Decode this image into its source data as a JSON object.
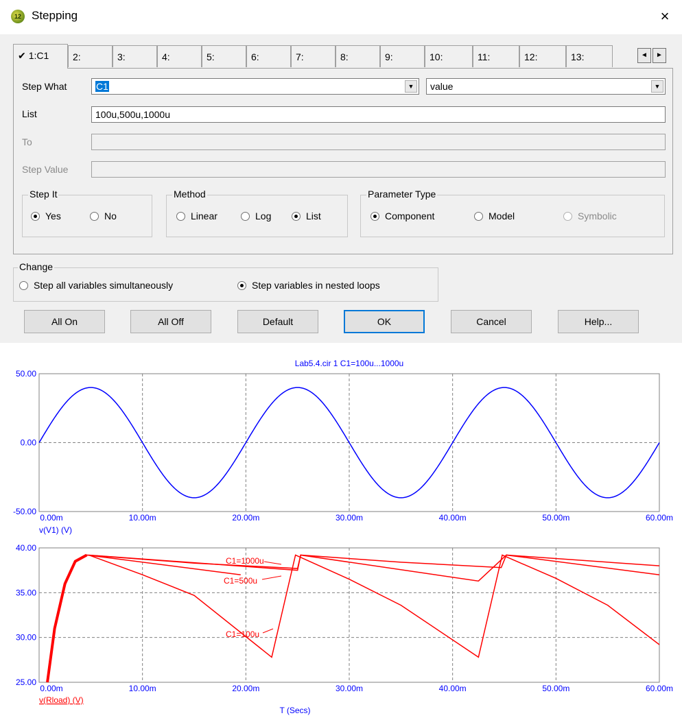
{
  "window": {
    "title": "Stepping",
    "icon_text": "12",
    "close_label": "×"
  },
  "tabs": [
    "1:C1",
    "2:",
    "3:",
    "4:",
    "5:",
    "6:",
    "7:",
    "8:",
    "9:",
    "10:",
    "11:",
    "12:",
    "13:"
  ],
  "active_tab_check": "✔",
  "tab_scroll": {
    "left": "◄",
    "right": "►"
  },
  "form": {
    "step_what_label": "Step What",
    "step_what_value": "C1",
    "step_what_dropdown_arrow": "▼",
    "property_value": "value",
    "list_label": "List",
    "list_value": "100u,500u,1000u",
    "to_label": "To",
    "step_value_label": "Step Value"
  },
  "step_it": {
    "title": "Step It",
    "options": [
      "Yes",
      "No"
    ],
    "selected": "Yes"
  },
  "method": {
    "title": "Method",
    "options": [
      "Linear",
      "Log",
      "List"
    ],
    "selected": "List"
  },
  "parameter_type": {
    "title": "Parameter Type",
    "options": [
      "Component",
      "Model",
      "Symbolic"
    ],
    "selected": "Component"
  },
  "change": {
    "title": "Change",
    "options": [
      "Step all variables simultaneously",
      "Step variables in nested loops"
    ],
    "selected": "Step variables in nested loops"
  },
  "buttons": [
    "All On",
    "All Off",
    "Default",
    "OK",
    "Cancel",
    "Help..."
  ],
  "colors": {
    "blue_trace": "#0000ff",
    "red_trace": "#ff0000",
    "axis_label_blue": "#0000ff"
  },
  "chart_data": [
    {
      "type": "line",
      "title": "Lab5.4.cir 1 C1=100u...1000u",
      "ylabel": "v(V1) (V)",
      "xlim": [
        0,
        60
      ],
      "ylim": [
        -50,
        50
      ],
      "x_ticks": [
        "0.00m",
        "10.00m",
        "20.00m",
        "30.00m",
        "40.00m",
        "50.00m",
        "60.00m"
      ],
      "y_ticks": [
        "50.00",
        "0.00",
        "-50.00"
      ],
      "grid": true,
      "series": [
        {
          "function": "sine",
          "amplitude": 40,
          "period_ms": 20,
          "x_start_ms": 0,
          "x_end_ms": 60
        }
      ]
    },
    {
      "type": "line",
      "xlabel": "T (Secs)",
      "ylabel": "v(Rload) (V)",
      "xlim": [
        0,
        60
      ],
      "ylim": [
        25,
        40
      ],
      "x_ticks": [
        "0.00m",
        "10.00m",
        "20.00m",
        "30.00m",
        "40.00m",
        "50.00m",
        "60.00m"
      ],
      "y_ticks": [
        "40.00",
        "35.00",
        "30.00",
        "25.00"
      ],
      "grid": true,
      "annotations": [
        "C1=1000u",
        "C1=500u",
        "C1=100u"
      ],
      "series": [
        {
          "points": [
            [
              0.8,
              25
            ],
            [
              1.5,
              31
            ],
            [
              2.5,
              36
            ],
            [
              3.5,
              38.5
            ],
            [
              4.6,
              39.2
            ],
            [
              15,
              38.3
            ],
            [
              25,
              37.7
            ],
            [
              25.3,
              39.2
            ],
            [
              35,
              38.4
            ],
            [
              44.7,
              37.8
            ],
            [
              45.2,
              39.2
            ],
            [
              60,
              38.0
            ]
          ]
        },
        {
          "points": [
            [
              4.6,
              39.2
            ],
            [
              19.5,
              37.0
            ]
          ]
        },
        {
          "points": [
            [
              4.8,
              39.2
            ],
            [
              25,
              37.5
            ],
            [
              25.3,
              39.2
            ],
            [
              42.5,
              36.3
            ],
            [
              45.2,
              39.2
            ],
            [
              60,
              37.0
            ]
          ]
        },
        {
          "points": [
            [
              4.8,
              39.2
            ],
            [
              10,
              37.0
            ],
            [
              15,
              34.7
            ],
            [
              22.5,
              27.8
            ],
            [
              24.8,
              39.2
            ],
            [
              30,
              36.5
            ],
            [
              35,
              33.6
            ],
            [
              42.5,
              27.8
            ],
            [
              44.8,
              39.2
            ],
            [
              50,
              36.6
            ],
            [
              55,
              33.6
            ],
            [
              60,
              29.2
            ]
          ]
        }
      ]
    }
  ]
}
